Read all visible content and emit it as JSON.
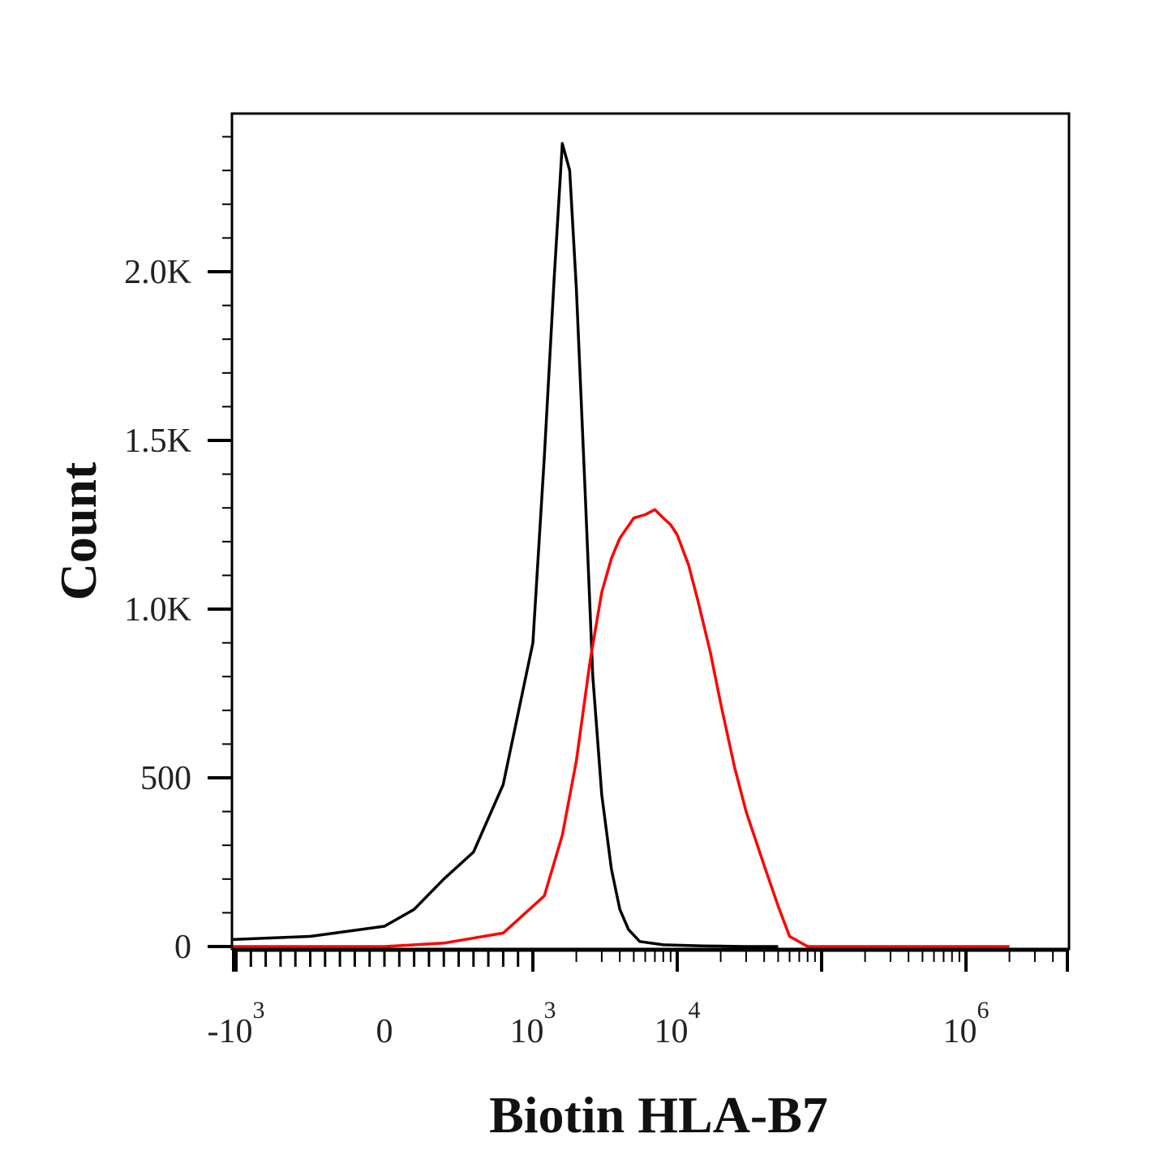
{
  "chart_data": {
    "type": "line",
    "title": "",
    "xlabel": "Biotin HLA-B7",
    "ylabel": "Count",
    "x_scale": "biexponential",
    "ylim": [
      0,
      2480
    ],
    "grid": false,
    "legend": "none",
    "x_ticks": [
      {
        "value": -1000,
        "base": "-10",
        "exp": "3"
      },
      {
        "value": 0,
        "base": "0",
        "exp": ""
      },
      {
        "value": 1000,
        "base": "10",
        "exp": "3"
      },
      {
        "value": 10000,
        "base": "10",
        "exp": "4"
      },
      {
        "value": 1000000,
        "base": "10",
        "exp": "6"
      }
    ],
    "y_ticks": [
      {
        "value": 0,
        "label": "0"
      },
      {
        "value": 500,
        "label": "500"
      },
      {
        "value": 1000,
        "label": "1.0K"
      },
      {
        "value": 1500,
        "label": "1.5K"
      },
      {
        "value": 2000,
        "label": "2.0K"
      }
    ],
    "series": [
      {
        "color": "#000000",
        "x": [
          -3000,
          -2000,
          -1200,
          -500,
          0,
          200,
          400,
          600,
          800,
          1000,
          1200,
          1400,
          1600,
          1800,
          2000,
          2300,
          2600,
          3000,
          3500,
          4000,
          4600,
          5500,
          8000,
          15000,
          30000,
          50000
        ],
        "y": [
          15,
          5,
          20,
          30,
          60,
          110,
          200,
          280,
          480,
          900,
          1450,
          1970,
          2380,
          2300,
          1950,
          1350,
          800,
          450,
          230,
          110,
          50,
          15,
          5,
          2,
          0,
          0
        ]
      },
      {
        "color": "#ff0000",
        "x": [
          -3000,
          -1000,
          0,
          400,
          800,
          1200,
          1600,
          2000,
          2500,
          3000,
          3500,
          4000,
          5000,
          6000,
          7000,
          8000,
          9000,
          10000,
          12000,
          14000,
          17000,
          20000,
          25000,
          30000,
          40000,
          50000,
          60000,
          80000,
          100000,
          2000000
        ],
        "y": [
          0,
          0,
          0,
          10,
          40,
          150,
          330,
          550,
          850,
          1050,
          1150,
          1210,
          1270,
          1280,
          1295,
          1270,
          1250,
          1220,
          1130,
          1020,
          870,
          720,
          530,
          400,
          240,
          120,
          30,
          0,
          0,
          0
        ]
      }
    ]
  }
}
